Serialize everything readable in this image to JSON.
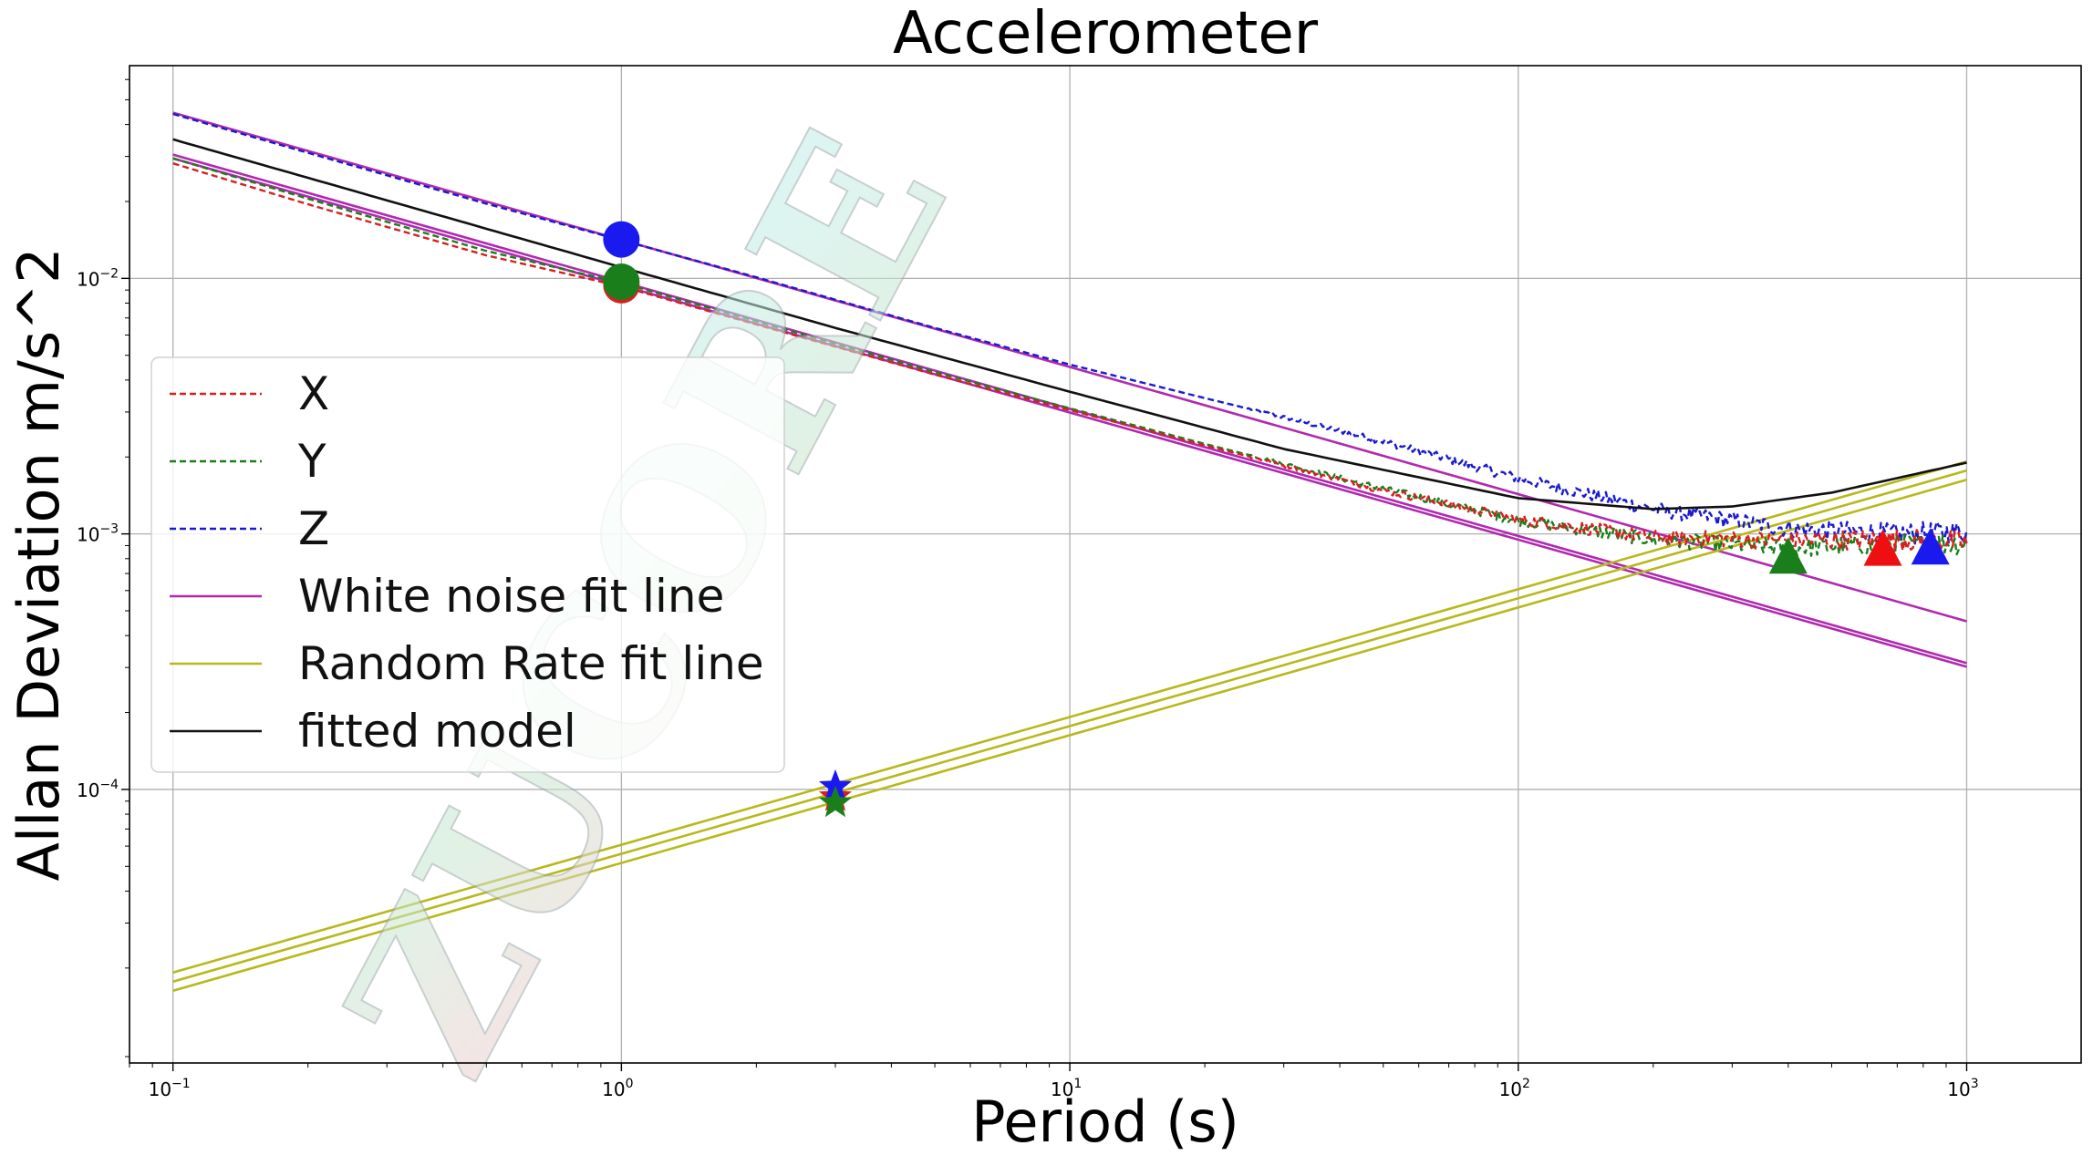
{
  "chart_data": {
    "type": "line",
    "title": "Accelerometer",
    "xlabel": "Period (s)",
    "ylabel": "Allan Deviation m/s^2",
    "xscale": "log",
    "yscale": "log",
    "xlim": [
      0.08,
      1800
    ],
    "ylim": [
      8.5e-06,
      0.068
    ],
    "grid": true,
    "legend_position": "center-left",
    "x_ticks": [
      {
        "value": 0.1,
        "base": "10",
        "exp": "−1"
      },
      {
        "value": 1,
        "base": "10",
        "exp": "0"
      },
      {
        "value": 10,
        "base": "10",
        "exp": "1"
      },
      {
        "value": 100,
        "base": "10",
        "exp": "2"
      },
      {
        "value": 1000,
        "base": "10",
        "exp": "3"
      }
    ],
    "y_ticks": [
      {
        "value": 0.0001,
        "base": "10",
        "exp": "−4"
      },
      {
        "value": 0.001,
        "base": "10",
        "exp": "−3"
      },
      {
        "value": 0.01,
        "base": "10",
        "exp": "−2"
      }
    ],
    "series": [
      {
        "name": "X",
        "color": "#d62020",
        "style": "dashed",
        "x": [
          0.1,
          0.2,
          0.5,
          1,
          2,
          5,
          10,
          20,
          50,
          100,
          200,
          400,
          700,
          1000
        ],
        "y": [
          0.0282,
          0.0195,
          0.0123,
          0.0093,
          0.0066,
          0.0042,
          0.00305,
          0.00222,
          0.00148,
          0.00114,
          0.00097,
          0.00094,
          0.00095,
          0.00093
        ]
      },
      {
        "name": "Y",
        "color": "#1a7f1a",
        "style": "dashed",
        "x": [
          0.1,
          0.2,
          0.5,
          1,
          2,
          5,
          10,
          20,
          50,
          100,
          200,
          400,
          700,
          1000
        ],
        "y": [
          0.0295,
          0.0205,
          0.0128,
          0.0096,
          0.0068,
          0.0043,
          0.0031,
          0.00225,
          0.0015,
          0.00113,
          0.00095,
          0.00088,
          0.00091,
          0.00092
        ]
      },
      {
        "name": "Z",
        "color": "#1a1acf",
        "style": "dashed",
        "x": [
          0.1,
          0.2,
          0.5,
          1,
          2,
          5,
          10,
          20,
          50,
          100,
          200,
          400,
          700,
          1000
        ],
        "y": [
          0.044,
          0.031,
          0.0196,
          0.0141,
          0.0101,
          0.0064,
          0.0046,
          0.0034,
          0.0023,
          0.00165,
          0.00125,
          0.00105,
          0.001,
          0.00102
        ]
      },
      {
        "name": "White noise fit line",
        "color": "#b02ab0",
        "style": "solid",
        "lines": [
          {
            "x": [
              0.1,
              1000
            ],
            "y": [
              0.0445,
              0.000455
            ]
          },
          {
            "x": [
              0.1,
              1000
            ],
            "y": [
              0.0305,
              0.000312
            ]
          },
          {
            "x": [
              0.1,
              1000
            ],
            "y": [
              0.0295,
              0.000302
            ]
          }
        ]
      },
      {
        "name": "Random Rate fit line",
        "color": "#b8b81a",
        "style": "solid",
        "lines": [
          {
            "x": [
              0.1,
              1000
            ],
            "y": [
              1.92e-05,
              0.00192
            ]
          },
          {
            "x": [
              0.1,
              1000
            ],
            "y": [
              1.77e-05,
              0.00177
            ]
          },
          {
            "x": [
              0.1,
              1000
            ],
            "y": [
              1.63e-05,
              0.00163
            ]
          }
        ]
      },
      {
        "name": "fitted model",
        "color": "#111111",
        "style": "solid",
        "x": [
          0.1,
          0.3,
          1,
          3,
          10,
          30,
          100,
          200,
          300,
          500,
          1000
        ],
        "y": [
          0.035,
          0.0202,
          0.01105,
          0.0064,
          0.0036,
          0.00215,
          0.00138,
          0.00125,
          0.00128,
          0.00145,
          0.0019
        ]
      }
    ],
    "markers": [
      {
        "shape": "circle",
        "color": "#d62020",
        "x": 1,
        "y": 0.0094
      },
      {
        "shape": "circle",
        "color": "#1a1aee",
        "x": 1,
        "y": 0.0142
      },
      {
        "shape": "circle",
        "color": "#1a7f1a",
        "x": 1,
        "y": 0.0097
      },
      {
        "shape": "star",
        "color": "#d62020",
        "x": 3,
        "y": 9.35e-05
      },
      {
        "shape": "star",
        "color": "#1a1aee",
        "x": 3,
        "y": 0.0001025
      },
      {
        "shape": "star",
        "color": "#1a7f1a",
        "x": 3,
        "y": 8.85e-05
      },
      {
        "shape": "triangle",
        "color": "#1a7f1a",
        "x": 400,
        "y": 0.00081
      },
      {
        "shape": "triangle",
        "color": "#ee1010",
        "x": 650,
        "y": 0.00087
      },
      {
        "shape": "triangle",
        "color": "#1a1aee",
        "x": 830,
        "y": 0.00088
      }
    ]
  },
  "watermark": {
    "text": "ZUCORE"
  }
}
